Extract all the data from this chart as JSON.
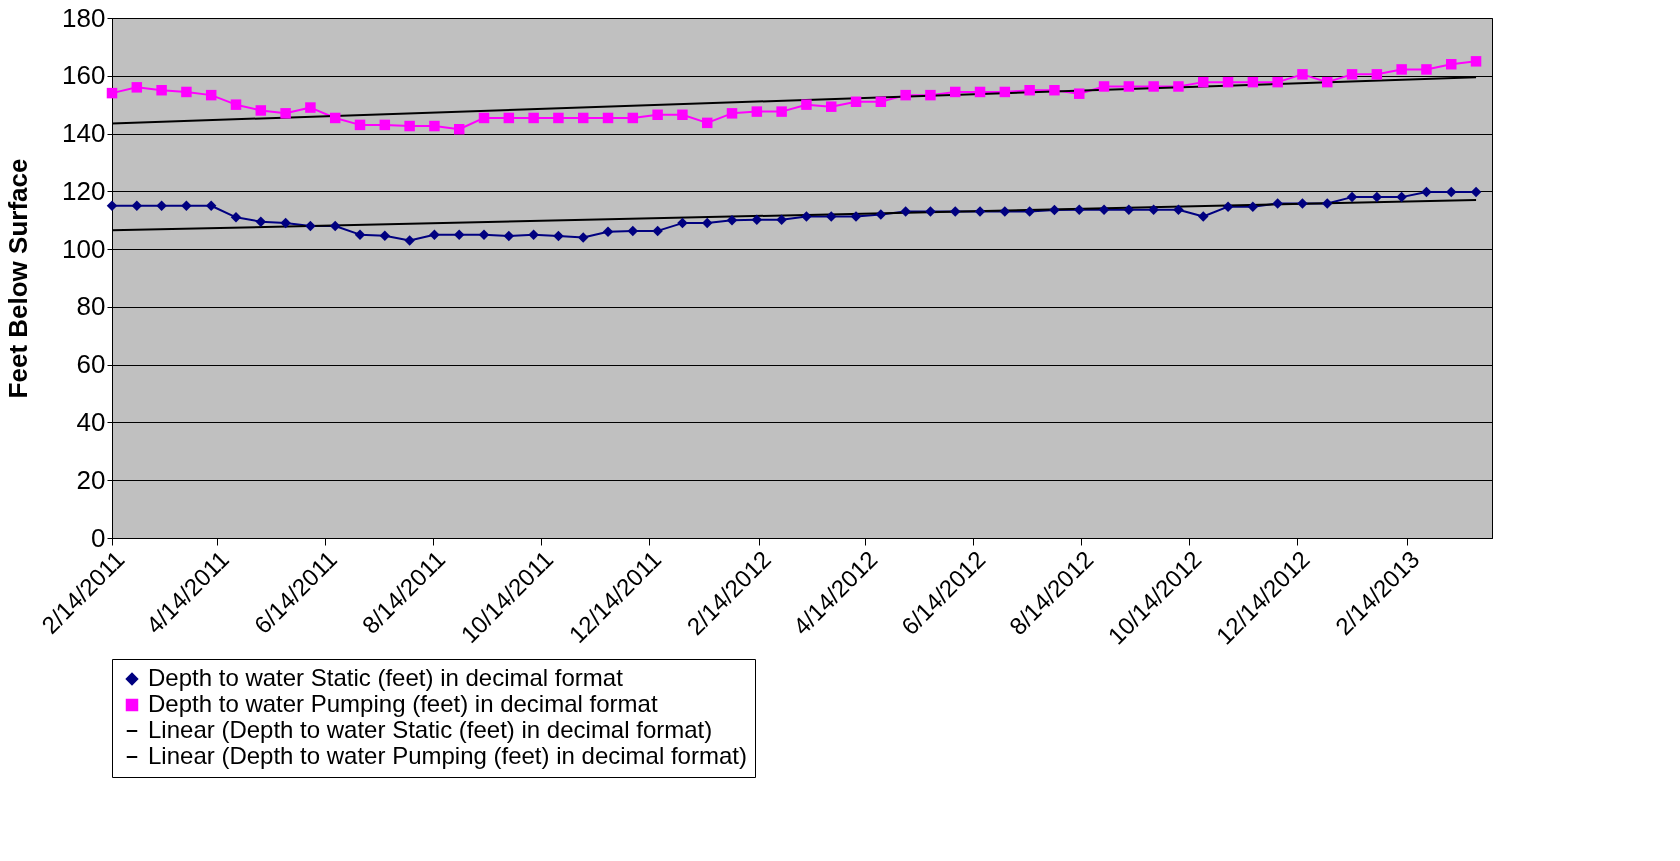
{
  "chart_data": {
    "type": "line",
    "ylabel": "Feet Below Surface",
    "x": [
      "2011-02-14",
      "2011-02-28",
      "2011-03-14",
      "2011-03-28",
      "2011-04-11",
      "2011-04-25",
      "2011-05-09",
      "2011-05-23",
      "2011-06-06",
      "2011-06-20",
      "2011-07-04",
      "2011-07-18",
      "2011-08-01",
      "2011-08-15",
      "2011-08-29",
      "2011-09-12",
      "2011-09-26",
      "2011-10-10",
      "2011-10-24",
      "2011-11-07",
      "2011-11-21",
      "2011-12-05",
      "2011-12-19",
      "2012-01-02",
      "2012-01-16",
      "2012-01-30",
      "2012-02-13",
      "2012-02-27",
      "2012-03-12",
      "2012-03-26",
      "2012-04-09",
      "2012-04-23",
      "2012-05-07",
      "2012-05-21",
      "2012-06-04",
      "2012-06-18",
      "2012-07-02",
      "2012-07-16",
      "2012-07-30",
      "2012-08-13",
      "2012-08-27",
      "2012-09-10",
      "2012-09-24",
      "2012-10-08",
      "2012-10-22",
      "2012-11-05",
      "2012-11-19",
      "2012-12-03",
      "2012-12-17",
      "2012-12-31",
      "2013-01-14",
      "2013-01-28",
      "2013-02-11",
      "2013-02-25",
      "2013-03-11",
      "2013-03-25"
    ],
    "series": [
      {
        "name": "Depth to water Static (feet) in decimal format",
        "color": "#000080",
        "marker": "diamond",
        "values": [
          115,
          115,
          115,
          115,
          115,
          111,
          109.5,
          109,
          108,
          108,
          105,
          104.6,
          103,
          105,
          105,
          105,
          104.5,
          105,
          104.5,
          104,
          106,
          106.3,
          106.3,
          109,
          109,
          110,
          110.2,
          110.2,
          111.3,
          111.3,
          111.3,
          112,
          113,
          113,
          113,
          113,
          113,
          113,
          113.5,
          113.6,
          113.6,
          113.6,
          113.6,
          113.6,
          111.3,
          114.7,
          114.7,
          115.8,
          115.8,
          115.8,
          118,
          118,
          118,
          119.8,
          119.8,
          119.8
        ]
      },
      {
        "name": "Depth to water Pumping (feet) in decimal format",
        "color": "#ff00ff",
        "marker": "square",
        "values": [
          154,
          156,
          155,
          154.4,
          153.3,
          150,
          148,
          147,
          149,
          145.4,
          143,
          143,
          142.6,
          142.6,
          141.5,
          145.4,
          145.4,
          145.4,
          145.4,
          145.4,
          145.4,
          145.4,
          146.5,
          146.5,
          143.7,
          147,
          147.6,
          147.6,
          150,
          149.3,
          151,
          151,
          153.3,
          153.3,
          154.4,
          154.4,
          154.4,
          155,
          155,
          153.8,
          156.3,
          156.3,
          156.3,
          156.3,
          157.8,
          157.8,
          157.8,
          157.8,
          160.5,
          157.8,
          160.5,
          160.5,
          162.2,
          162.2,
          164,
          165
        ]
      },
      {
        "name": "Linear (Depth to water Static (feet) in decimal format)",
        "color": "#000000",
        "marker": "none",
        "x": [
          "2011-02-14",
          "2013-03-25"
        ],
        "values": [
          106.5,
          117
        ]
      },
      {
        "name": "Linear (Depth to water Pumping (feet) in decimal format)",
        "color": "#000000",
        "marker": "none",
        "x": [
          "2011-02-14",
          "2013-03-25"
        ],
        "values": [
          143.5,
          159.5
        ]
      }
    ],
    "xlim": [
      "2011-02-14",
      "2013-04-03"
    ],
    "xticks": [
      {
        "value": "2011-02-14",
        "label": "2/14/2011"
      },
      {
        "value": "2011-04-14",
        "label": "4/14/2011"
      },
      {
        "value": "2011-06-14",
        "label": "6/14/2011"
      },
      {
        "value": "2011-08-14",
        "label": "8/14/2011"
      },
      {
        "value": "2011-10-14",
        "label": "10/14/2011"
      },
      {
        "value": "2011-12-14",
        "label": "12/14/2011"
      },
      {
        "value": "2012-02-14",
        "label": "2/14/2012"
      },
      {
        "value": "2012-04-14",
        "label": "4/14/2012"
      },
      {
        "value": "2012-06-14",
        "label": "6/14/2012"
      },
      {
        "value": "2012-08-14",
        "label": "8/14/2012"
      },
      {
        "value": "2012-10-14",
        "label": "10/14/2012"
      },
      {
        "value": "2012-12-14",
        "label": "12/14/2012"
      },
      {
        "value": "2013-02-14",
        "label": "2/14/2013"
      }
    ],
    "ylim": [
      0,
      180
    ],
    "yticks": [
      0,
      20,
      40,
      60,
      80,
      100,
      120,
      140,
      160,
      180
    ],
    "grid": "y",
    "legend": "bottom"
  }
}
